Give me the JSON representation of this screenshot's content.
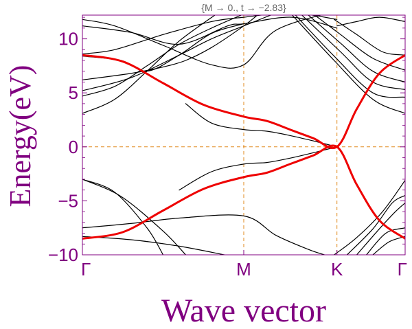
{
  "chart_data": {
    "type": "line",
    "title": "",
    "parameter_label": "{M → 0., t → −2.83}",
    "xlabel": "Wave vector",
    "ylabel": "Energy(eV)",
    "ylim": [
      -10,
      12.2
    ],
    "x_ticks": [
      {
        "label": "Γ",
        "pos": 0
      },
      {
        "label": "M",
        "pos": 0.5
      },
      {
        "label": "K",
        "pos": 0.7887
      },
      {
        "label": "Γ",
        "pos": 1
      }
    ],
    "y_ticks": [
      {
        "label": "−10",
        "value": -10
      },
      {
        "label": "−5",
        "value": -5
      },
      {
        "label": "0",
        "value": 0
      },
      {
        "label": "5",
        "value": 5
      },
      {
        "label": "10",
        "value": 10
      }
    ],
    "grid": "dashed lines at M, K and E = 0",
    "colors": {
      "frame": "#800080",
      "highlight_band": "#ee0000",
      "other_bands": "#000000",
      "guide_lines": "#e08a1e"
    },
    "series": [
      {
        "role": "highlight",
        "color": "#ee0000",
        "x": [
          0,
          0.125,
          0.25,
          0.375,
          0.5,
          0.571,
          0.643,
          0.715,
          0.7887,
          0.85,
          0.92,
          1.0
        ],
        "y": [
          8.5,
          7.9,
          5.9,
          3.9,
          2.8,
          2.4,
          1.6,
          0.8,
          0,
          3.5,
          6.8,
          8.5
        ]
      },
      {
        "role": "highlight",
        "color": "#ee0000",
        "x": [
          0,
          0.125,
          0.25,
          0.375,
          0.5,
          0.571,
          0.643,
          0.715,
          0.7887,
          0.85,
          0.92,
          1.0
        ],
        "y": [
          -8.5,
          -7.9,
          -5.9,
          -3.9,
          -2.8,
          -2.4,
          -1.6,
          -0.8,
          0,
          -3.5,
          -6.8,
          -8.5
        ]
      },
      {
        "role": "band",
        "color": "#000000",
        "x": [
          0,
          0.1,
          0.25,
          0.4,
          0.5,
          0.6,
          0.7887
        ],
        "y": [
          11.8,
          11.2,
          9.4,
          7.6,
          7.6,
          10.8,
          12.6
        ]
      },
      {
        "role": "band",
        "color": "#000000",
        "x": [
          0,
          0.15,
          0.3,
          0.45,
          0.5,
          0.65,
          0.7887
        ],
        "y": [
          11.2,
          10.6,
          9.5,
          11.2,
          11.4,
          12.0,
          11.0
        ]
      },
      {
        "role": "band",
        "color": "#000000",
        "x": [
          0,
          0.1,
          0.25,
          0.4,
          0.5,
          0.65,
          0.7887
        ],
        "y": [
          8.6,
          9.0,
          10.4,
          11.6,
          12.0,
          12.4,
          11.8
        ]
      },
      {
        "role": "band",
        "color": "#000000",
        "x": [
          0,
          0.12,
          0.2,
          0.3,
          0.4,
          0.5
        ],
        "y": [
          8.4,
          8.0,
          7.0,
          8.5,
          10.5,
          11.4
        ]
      },
      {
        "role": "band",
        "color": "#000000",
        "x": [
          0,
          0.15,
          0.25,
          0.32,
          0.4,
          0.5,
          0.55
        ],
        "y": [
          6.2,
          6.8,
          7.4,
          8.0,
          9.2,
          11.2,
          12.4
        ]
      },
      {
        "role": "band",
        "color": "#000000",
        "x": [
          0,
          0.15,
          0.3,
          0.4,
          0.5,
          0.6
        ],
        "y": [
          5.2,
          6.4,
          8.5,
          10.0,
          11.2,
          12.4
        ]
      },
      {
        "role": "band",
        "color": "#000000",
        "x": [
          0,
          0.1,
          0.2,
          0.3,
          0.4,
          0.5
        ],
        "y": [
          4.7,
          5.6,
          7.5,
          9.5,
          11.0,
          12.3
        ]
      },
      {
        "role": "band",
        "color": "#000000",
        "x": [
          0,
          0.1,
          0.2,
          0.3,
          0.42
        ],
        "y": [
          3.1,
          4.4,
          7.0,
          9.8,
          12.4
        ]
      },
      {
        "role": "band",
        "color": "#000000",
        "x": [
          0.32,
          0.4,
          0.5,
          0.571,
          0.643,
          0.715,
          0.7887
        ],
        "y": [
          4.0,
          2.2,
          1.6,
          1.45,
          1.05,
          0.55,
          0
        ]
      },
      {
        "role": "band",
        "color": "#000000",
        "x": [
          0,
          0.1,
          0.2,
          0.25
        ],
        "y": [
          -3.0,
          -4.2,
          -7.5,
          -10.0
        ]
      },
      {
        "role": "band",
        "color": "#000000",
        "x": [
          0,
          0.12,
          0.25,
          0.32
        ],
        "y": [
          -3.0,
          -4.6,
          -7.8,
          -10.0
        ]
      },
      {
        "role": "band",
        "color": "#000000",
        "x": [
          0.3,
          0.4,
          0.5,
          0.571,
          0.643,
          0.715,
          0.7887
        ],
        "y": [
          -4.0,
          -2.3,
          -1.6,
          -1.45,
          -1.05,
          -0.55,
          0
        ]
      },
      {
        "role": "band",
        "color": "#000000",
        "x": [
          0,
          0.15,
          0.3,
          0.5,
          0.6,
          0.7,
          0.75
        ],
        "y": [
          -7.5,
          -7.1,
          -6.6,
          -6.4,
          -8.2,
          -9.5,
          -10.0
        ]
      },
      {
        "role": "band",
        "color": "#000000",
        "x": [
          0,
          0.15,
          0.3,
          0.44
        ],
        "y": [
          -8.3,
          -8.6,
          -9.2,
          -10.0
        ]
      },
      {
        "role": "band",
        "color": "#000000",
        "x": [
          0.78,
          0.85,
          0.93,
          1.0
        ],
        "y": [
          11.8,
          10.4,
          8.8,
          8.5
        ]
      },
      {
        "role": "band",
        "color": "#000000",
        "x": [
          0.7887,
          0.85,
          0.92,
          1.0
        ],
        "y": [
          11.2,
          11.6,
          12.0,
          11.6
        ]
      },
      {
        "role": "band",
        "color": "#000000",
        "x": [
          0.72,
          0.8,
          0.9,
          1.0
        ],
        "y": [
          12.2,
          10.4,
          8.2,
          7.1
        ]
      },
      {
        "role": "band",
        "color": "#000000",
        "x": [
          0.7,
          0.8,
          0.9,
          1.0
        ],
        "y": [
          12.2,
          9.6,
          7.0,
          6.0
        ]
      },
      {
        "role": "band",
        "color": "#000000",
        "x": [
          0.68,
          0.8,
          0.9,
          1.0
        ],
        "y": [
          12.2,
          8.8,
          6.0,
          5.3
        ]
      },
      {
        "role": "band",
        "color": "#000000",
        "x": [
          0.66,
          0.78,
          0.9,
          1.0
        ],
        "y": [
          12.2,
          8.4,
          5.0,
          4.6
        ]
      },
      {
        "role": "band",
        "color": "#000000",
        "x": [
          0.65,
          0.78,
          0.9,
          1.0
        ],
        "y": [
          12.2,
          8.0,
          4.4,
          3.1
        ]
      },
      {
        "role": "band",
        "color": "#000000",
        "x": [
          0.78,
          0.85,
          0.93,
          1.0
        ],
        "y": [
          -10.0,
          -8.4,
          -6.0,
          -3.1
        ]
      },
      {
        "role": "band",
        "color": "#000000",
        "x": [
          0.82,
          0.9,
          0.96,
          1.0
        ],
        "y": [
          -10.0,
          -7.6,
          -5.2,
          -4.5
        ]
      },
      {
        "role": "band",
        "color": "#000000",
        "x": [
          0.85,
          0.92,
          0.97,
          1.0
        ],
        "y": [
          -10.0,
          -7.6,
          -6.0,
          -5.2
        ]
      },
      {
        "role": "band",
        "color": "#000000",
        "x": [
          0.88,
          0.94,
          1.0
        ],
        "y": [
          -10.0,
          -8.0,
          -7.5
        ]
      },
      {
        "role": "band",
        "color": "#000000",
        "x": [
          0.9,
          0.95,
          1.0
        ],
        "y": [
          -10.0,
          -8.8,
          -8.3
        ]
      }
    ]
  }
}
